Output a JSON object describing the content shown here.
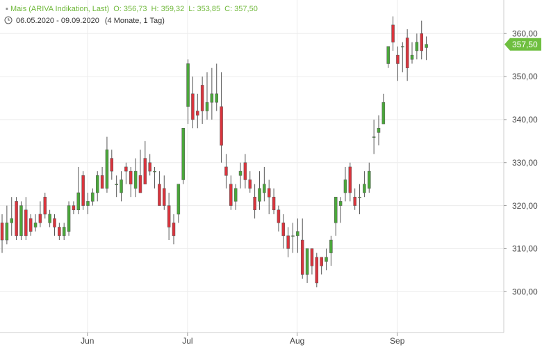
{
  "chart_data": {
    "type": "candlestick",
    "title": "Mais (ARIVA Indikation, Last)",
    "ohlc_labels": [
      "O: 356,73",
      "H: 359,32",
      "L: 353,85",
      "C: 357,50"
    ],
    "date_range": "06.05.2020 - 09.09.2020",
    "duration": "(4 Monate, 1 Tag)",
    "open": [
      316,
      312,
      316,
      321,
      313,
      319,
      317,
      315,
      318,
      322,
      316,
      317,
      315,
      313,
      314,
      320,
      319,
      327,
      320,
      321,
      323,
      327,
      324,
      331,
      325,
      323,
      329,
      328,
      324,
      327,
      331,
      330,
      328,
      325,
      324,
      320,
      316,
      318,
      326,
      343,
      346,
      342,
      348,
      342,
      344,
      344,
      343,
      329,
      325,
      321,
      327,
      330,
      326,
      322,
      321,
      323,
      324,
      322,
      319,
      316,
      313,
      313,
      313,
      312,
      304,
      310,
      308,
      308,
      307,
      309,
      316,
      320,
      323,
      329,
      322,
      322,
      323,
      324,
      336,
      337,
      339,
      353,
      362,
      355,
      357,
      359,
      354,
      356,
      360,
      356.73
    ],
    "high": [
      318,
      320,
      322,
      322,
      321,
      322,
      318,
      318,
      321,
      323,
      319,
      318,
      316,
      316,
      321,
      321,
      329,
      328,
      323,
      324,
      328,
      329,
      336,
      333,
      327,
      328,
      330,
      329,
      331,
      333,
      335,
      332,
      329,
      328,
      327,
      323,
      318,
      325,
      338,
      354,
      350,
      346,
      350,
      351,
      352,
      353,
      351,
      332,
      327,
      325,
      330,
      332,
      328,
      325,
      328,
      329,
      326,
      324,
      320,
      318,
      315,
      316,
      317,
      317,
      310,
      310,
      309,
      308,
      310,
      313,
      322,
      322,
      329,
      330,
      324,
      325,
      328,
      330,
      340,
      341,
      346,
      357,
      364,
      357,
      358,
      361,
      358,
      360,
      363,
      359.32
    ],
    "low": [
      309,
      311,
      313,
      312,
      312,
      312,
      313,
      314,
      315,
      317,
      315,
      313,
      312,
      312,
      313,
      318,
      318,
      319,
      318,
      320,
      321,
      324,
      323,
      326,
      322,
      321,
      325,
      322,
      322,
      323,
      325,
      327,
      324,
      320,
      319,
      312,
      311,
      316,
      325,
      339,
      338,
      338,
      339,
      340,
      340,
      342,
      330,
      324,
      319,
      319,
      324,
      324,
      323,
      317,
      319,
      321,
      318,
      318,
      314,
      310,
      308,
      309,
      309,
      303,
      302,
      304,
      301,
      304,
      305,
      306,
      313,
      316,
      321,
      321,
      319,
      318,
      322,
      323,
      332,
      334,
      339,
      352,
      356,
      349,
      351,
      349,
      353,
      354,
      354,
      353.85
    ],
    "close": [
      312,
      316,
      317,
      313,
      320,
      313,
      314,
      316,
      316,
      318,
      318,
      315,
      313,
      315,
      320,
      319,
      323,
      320,
      321,
      323,
      327,
      324,
      333,
      328,
      325,
      326,
      328,
      325,
      328,
      323,
      325,
      328,
      328,
      320,
      320,
      315,
      313,
      325,
      338,
      353,
      340,
      341,
      342,
      344,
      346,
      346,
      334,
      327,
      320,
      324,
      328,
      326,
      324,
      319,
      324,
      325,
      322,
      319,
      316,
      313,
      310,
      313,
      314,
      304,
      310,
      306,
      302,
      306,
      308,
      312,
      322,
      321,
      326,
      323,
      320,
      322,
      325,
      328,
      336,
      338,
      344,
      357,
      358,
      353,
      357,
      352,
      355,
      358,
      356,
      357.5
    ],
    "last_label": "357,50",
    "up_color": "#4aa63a",
    "down_color": "#d9343d",
    "xlim": [
      -0.44,
      105.24
    ],
    "xticks": [
      {
        "value": 17.9,
        "label": "Jun"
      },
      {
        "value": 38.9,
        "label": "Jul"
      },
      {
        "value": 61.9,
        "label": "Aug"
      },
      {
        "value": 82.9,
        "label": "Sep"
      }
    ],
    "ylim": [
      290.5,
      367.8
    ],
    "yticks": [
      {
        "value": 300,
        "label": "300,00"
      },
      {
        "value": 310,
        "label": "310,00"
      },
      {
        "value": 320,
        "label": "320,00"
      },
      {
        "value": 330,
        "label": "330,00"
      },
      {
        "value": 340,
        "label": "340,00"
      },
      {
        "value": 350,
        "label": "350,00"
      },
      {
        "value": 360,
        "label": "360,00"
      }
    ],
    "grid": true
  }
}
